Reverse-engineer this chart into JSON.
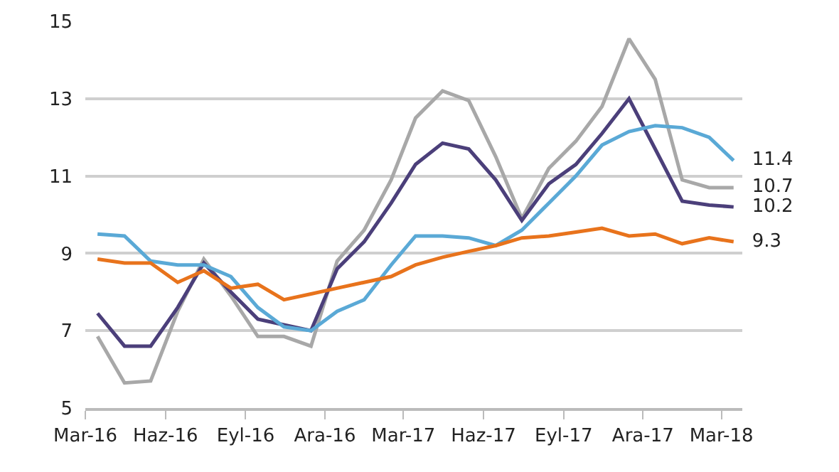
{
  "chart_data": {
    "type": "line",
    "x": [
      "2016-03-15",
      "2016-04-15",
      "2016-05-15",
      "2016-06-15",
      "2016-07-15",
      "2016-08-15",
      "2016-09-15",
      "2016-10-15",
      "2016-11-15",
      "2016-12-15",
      "2017-01-15",
      "2017-02-15",
      "2017-03-15",
      "2017-04-15",
      "2017-05-15",
      "2017-06-15",
      "2017-07-15",
      "2017-08-15",
      "2017-09-15",
      "2017-10-15",
      "2017-11-15",
      "2017-12-15",
      "2018-01-15",
      "2018-02-15",
      "2018-03-15"
    ],
    "series": [
      {
        "color": "#a8a8a8",
        "values": [
          6.85,
          5.65,
          5.7,
          7.5,
          8.85,
          7.9,
          6.85,
          6.85,
          6.6,
          8.8,
          9.6,
          10.9,
          12.5,
          13.2,
          12.95,
          11.5,
          9.9,
          11.2,
          11.9,
          12.8,
          14.55,
          13.5,
          10.9,
          10.7,
          10.7
        ],
        "value_labels": [
          null,
          null,
          null,
          null,
          null,
          null,
          null,
          null,
          null,
          null,
          null,
          null,
          null,
          null,
          null,
          null,
          null,
          null,
          null,
          null,
          null,
          null,
          null,
          null,
          "10.7"
        ]
      },
      {
        "color": "#4b3f7a",
        "values": [
          7.45,
          6.6,
          6.6,
          7.6,
          8.75,
          8.0,
          7.3,
          7.15,
          7.0,
          8.6,
          9.3,
          10.3,
          11.3,
          11.85,
          11.7,
          10.9,
          9.85,
          10.8,
          11.3,
          12.1,
          13.0,
          11.7,
          10.35,
          10.25,
          10.2
        ],
        "value_labels": [
          null,
          null,
          null,
          null,
          null,
          null,
          null,
          null,
          null,
          null,
          null,
          null,
          null,
          null,
          null,
          null,
          null,
          null,
          null,
          null,
          null,
          null,
          null,
          null,
          "10.2"
        ]
      },
      {
        "color": "#5aa9d6",
        "values": [
          9.5,
          9.45,
          8.8,
          8.7,
          8.7,
          8.4,
          7.6,
          7.1,
          7.0,
          7.5,
          7.8,
          8.7,
          9.45,
          9.45,
          9.4,
          9.2,
          9.6,
          10.3,
          11.0,
          11.8,
          12.15,
          12.3,
          12.25,
          12.0,
          11.4
        ],
        "value_labels": [
          null,
          null,
          null,
          null,
          null,
          null,
          null,
          null,
          null,
          null,
          null,
          null,
          null,
          null,
          null,
          null,
          null,
          null,
          null,
          null,
          null,
          null,
          null,
          null,
          "11.4"
        ]
      },
      {
        "color": "#e8731c",
        "values": [
          8.85,
          8.75,
          8.75,
          8.25,
          8.55,
          8.1,
          8.2,
          7.8,
          7.95,
          8.1,
          8.25,
          8.4,
          8.7,
          8.9,
          9.05,
          9.2,
          9.4,
          9.45,
          9.55,
          9.65,
          9.45,
          9.5,
          9.25,
          9.4,
          9.3
        ],
        "value_labels": [
          null,
          null,
          null,
          null,
          null,
          null,
          null,
          null,
          null,
          null,
          null,
          null,
          null,
          null,
          null,
          null,
          null,
          null,
          null,
          null,
          null,
          null,
          null,
          null,
          "9.3"
        ]
      }
    ],
    "xlim": [
      "2016-03-01",
      "2018-03-25"
    ],
    "xticks": [
      {
        "value": "2016-03-01",
        "label": "Mar-16"
      },
      {
        "value": "2016-06-01",
        "label": "Haz-16"
      },
      {
        "value": "2016-09-01",
        "label": "Eyl-16"
      },
      {
        "value": "2016-12-01",
        "label": "Ara-16"
      },
      {
        "value": "2017-03-01",
        "label": "Mar-17"
      },
      {
        "value": "2017-06-01",
        "label": "Haz-17"
      },
      {
        "value": "2017-09-01",
        "label": "Eyl-17"
      },
      {
        "value": "2017-12-01",
        "label": "Ara-17"
      },
      {
        "value": "2018-03-01",
        "label": "Mar-18"
      }
    ],
    "ylim": [
      5,
      15
    ],
    "yticks": [
      5,
      7,
      9,
      11,
      13,
      15
    ],
    "grid": "y",
    "marker": "none",
    "line_style": "solid"
  }
}
